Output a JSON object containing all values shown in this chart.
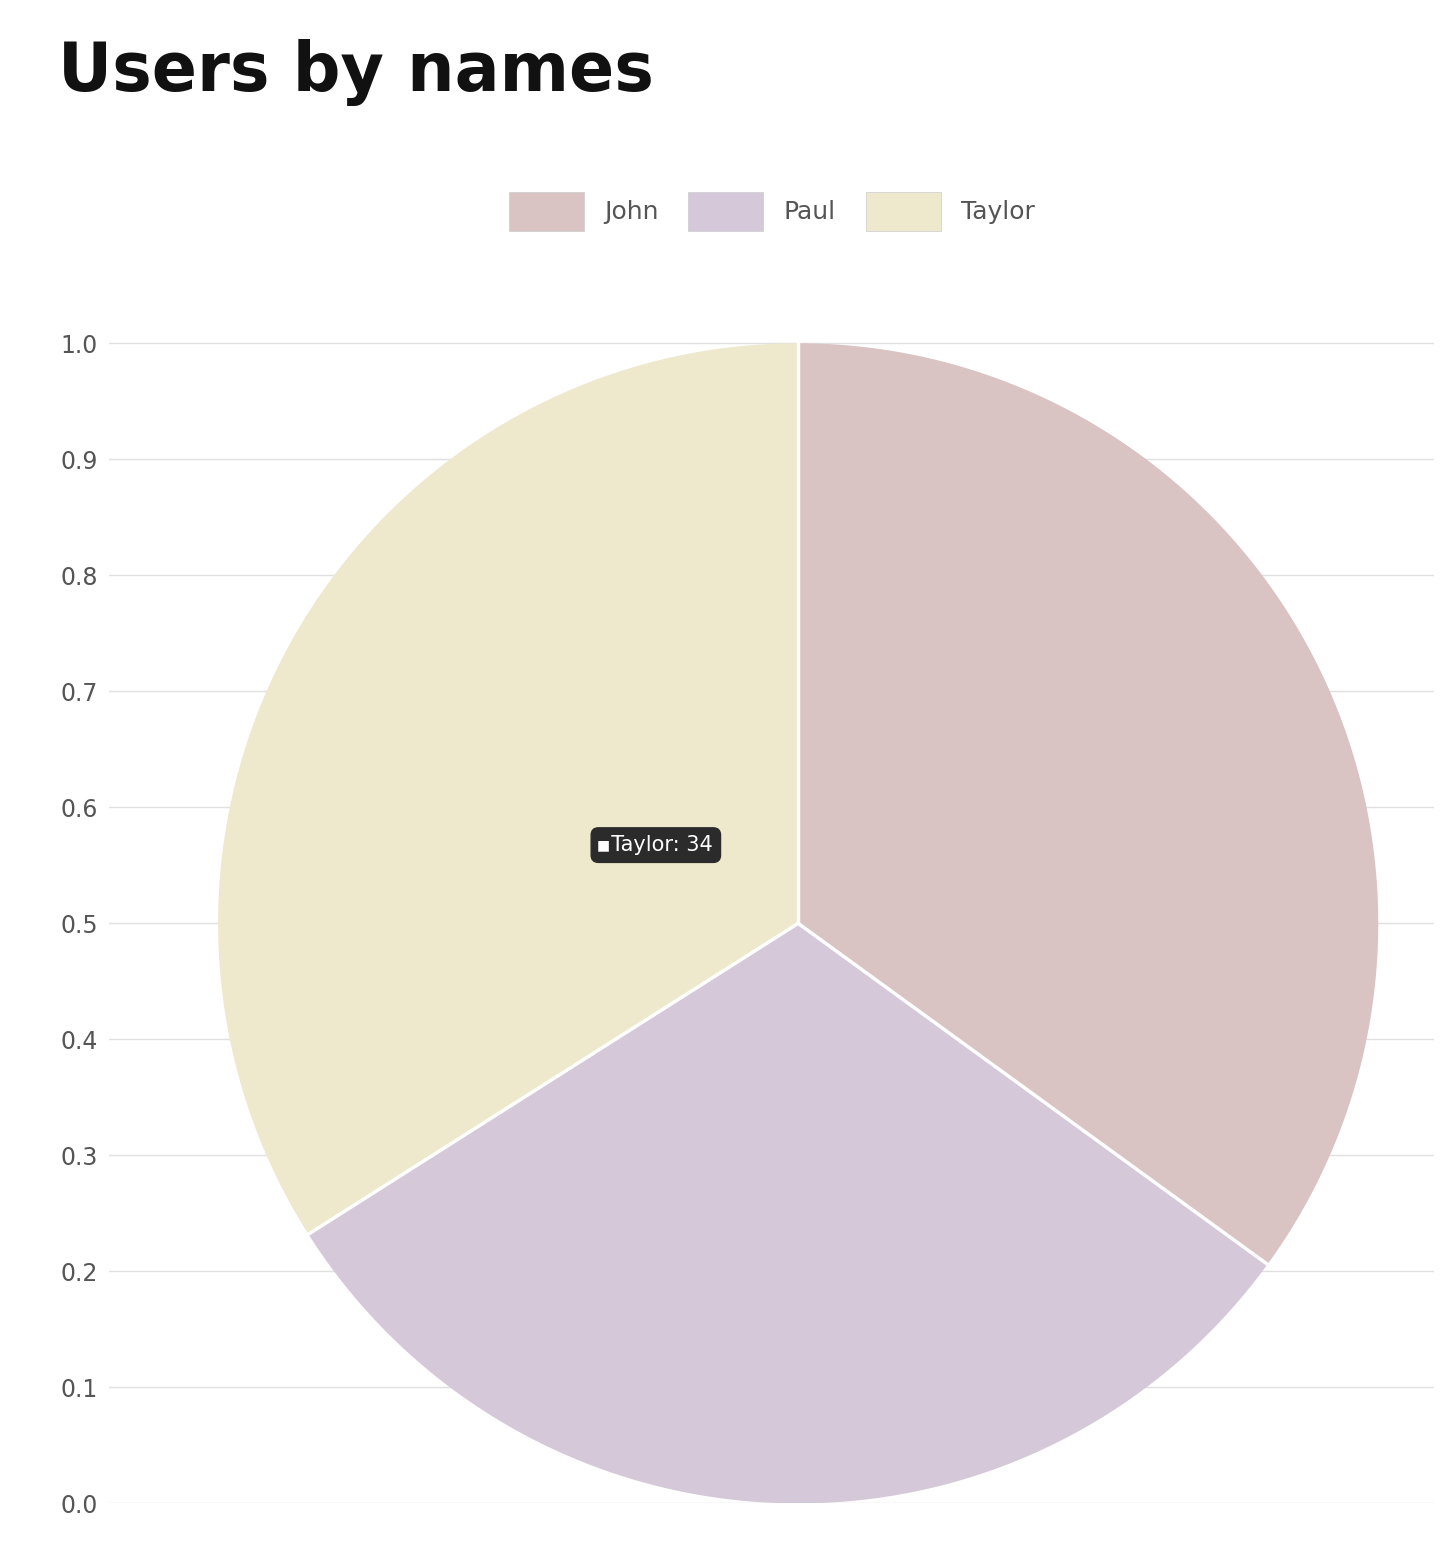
{
  "title": "Users by names",
  "labels": [
    "John",
    "Paul",
    "Taylor"
  ],
  "values": [
    35,
    31,
    34
  ],
  "colors": [
    "#d9c3c3",
    "#d5c8d8",
    "#eee8cc"
  ],
  "title_fontsize": 48,
  "legend_fontsize": 18,
  "yticks": [
    0,
    0.1,
    0.2,
    0.3,
    0.4,
    0.5,
    0.6,
    0.7,
    0.8,
    0.9,
    1.0
  ],
  "ylim": [
    0,
    1.05
  ],
  "tooltip_text": "Taylor: 34",
  "background_color": "#ffffff",
  "grid_color": "#e0e0e0",
  "tick_color": "#555555",
  "wedge_linewidth": 2.5
}
